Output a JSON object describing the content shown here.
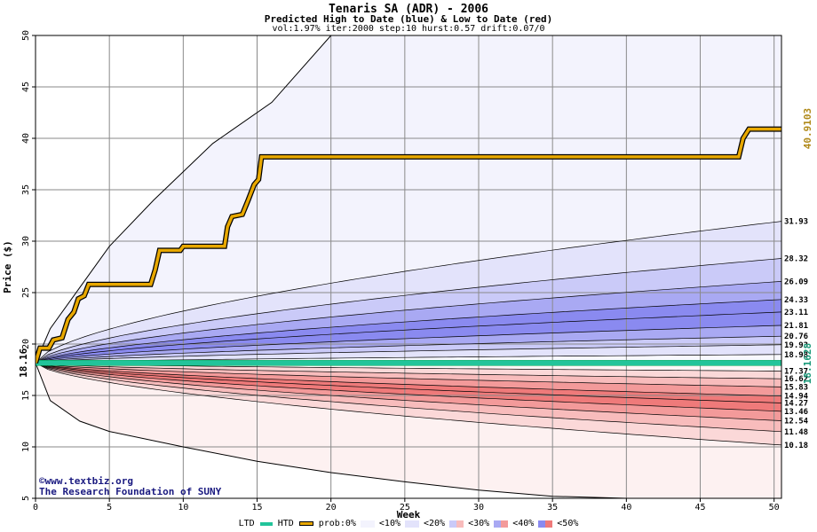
{
  "header": {
    "title": "Tenaris SA (ADR) - 2006",
    "subtitle": "Predicted High to Date (blue) &  Low to Date (red)",
    "params": "vol:1.97% iter:2000 step:10 hurst:0.57 drift:0.07/0"
  },
  "credits": {
    "line1": "©www.textbiz.org",
    "line2": "The Research Foundation of SUNY"
  },
  "legend": {
    "ltd": "LTD",
    "htd": "HTD",
    "prob": "prob:0%",
    "b10": "<10%",
    "b20": "<20%",
    "b30": "<30%",
    "b40": "<40%",
    "b50": "<50%"
  },
  "colors": {
    "ltd": "#22c49a",
    "htd": "#e8a800",
    "blue_bands": [
      "#f3f3fd",
      "#e3e3fb",
      "#cacaf8",
      "#a9a9f3",
      "#8a8af0"
    ],
    "red_bands": [
      "#fdf1f1",
      "#fbd8d8",
      "#f8bcbc",
      "#f39a9a",
      "#ef7a7a"
    ]
  },
  "chart_data": {
    "type": "line",
    "xlabel": "Week",
    "ylabel": "Price ($)",
    "xlim": [
      0,
      50.5
    ],
    "ylim": [
      5,
      50
    ],
    "xticks": [
      0,
      5,
      10,
      15,
      20,
      25,
      30,
      35,
      40,
      45,
      50
    ],
    "yticks": [
      5,
      10,
      15,
      20,
      25,
      30,
      35,
      40,
      45,
      50
    ],
    "start_price": 18.16,
    "start_label": "18.16",
    "right_top_label": "40.9103",
    "right_bottom_label": "18.1628",
    "quantiles_high": [
      {
        "label": "31.93",
        "value": 31.93
      },
      {
        "label": "28.32",
        "value": 28.32
      },
      {
        "label": "26.09",
        "value": 26.09
      },
      {
        "label": "24.33",
        "value": 24.33
      },
      {
        "label": "23.11",
        "value": 23.11
      },
      {
        "label": "21.81",
        "value": 21.81
      },
      {
        "label": "20.76",
        "value": 20.76
      },
      {
        "label": "19.93",
        "value": 19.93
      },
      {
        "label": "18.98",
        "value": 18.98
      }
    ],
    "quantiles_low": [
      {
        "label": "17.37",
        "value": 17.37
      },
      {
        "label": "16.62",
        "value": 16.62
      },
      {
        "label": "15.83",
        "value": 15.83
      },
      {
        "label": "14.94",
        "value": 14.94
      },
      {
        "label": "14.27",
        "value": 14.27
      },
      {
        "label": "13.46",
        "value": 13.46
      },
      {
        "label": "12.54",
        "value": 12.54
      },
      {
        "label": "11.48",
        "value": 11.48
      },
      {
        "label": "10.18",
        "value": 10.18
      }
    ],
    "envelope_high": [
      [
        0,
        18.16
      ],
      [
        1,
        21.5
      ],
      [
        3,
        25.5
      ],
      [
        5,
        29.5
      ],
      [
        8,
        34
      ],
      [
        12,
        39.5
      ],
      [
        16,
        43.5
      ],
      [
        20,
        50
      ]
    ],
    "envelope_low": [
      [
        0,
        18.16
      ],
      [
        1,
        14.5
      ],
      [
        3,
        12.5
      ],
      [
        5,
        11.5
      ],
      [
        10,
        10
      ],
      [
        15,
        8.6
      ],
      [
        20,
        7.5
      ],
      [
        25,
        6.6
      ],
      [
        30,
        5.8
      ],
      [
        35,
        5.2
      ],
      [
        40,
        5
      ]
    ],
    "htd_path": [
      [
        0,
        18.16
      ],
      [
        0.3,
        19.6
      ],
      [
        0.9,
        19.6
      ],
      [
        1.2,
        20.4
      ],
      [
        1.8,
        20.6
      ],
      [
        2.2,
        22.4
      ],
      [
        2.6,
        23.1
      ],
      [
        2.9,
        24.4
      ],
      [
        3.3,
        24.7
      ],
      [
        3.6,
        25.8
      ],
      [
        7.8,
        25.8
      ],
      [
        8.1,
        27.2
      ],
      [
        8.4,
        29.1
      ],
      [
        9.8,
        29.1
      ],
      [
        10,
        29.5
      ],
      [
        12.8,
        29.5
      ],
      [
        13,
        31.4
      ],
      [
        13.3,
        32.4
      ],
      [
        14,
        32.6
      ],
      [
        14.4,
        34
      ],
      [
        14.8,
        35.5
      ],
      [
        15.1,
        36
      ],
      [
        15.3,
        38.2
      ],
      [
        47.6,
        38.2
      ],
      [
        47.9,
        40
      ],
      [
        48.3,
        40.9
      ],
      [
        50.5,
        40.9
      ]
    ],
    "ltd_value": 18.16
  }
}
